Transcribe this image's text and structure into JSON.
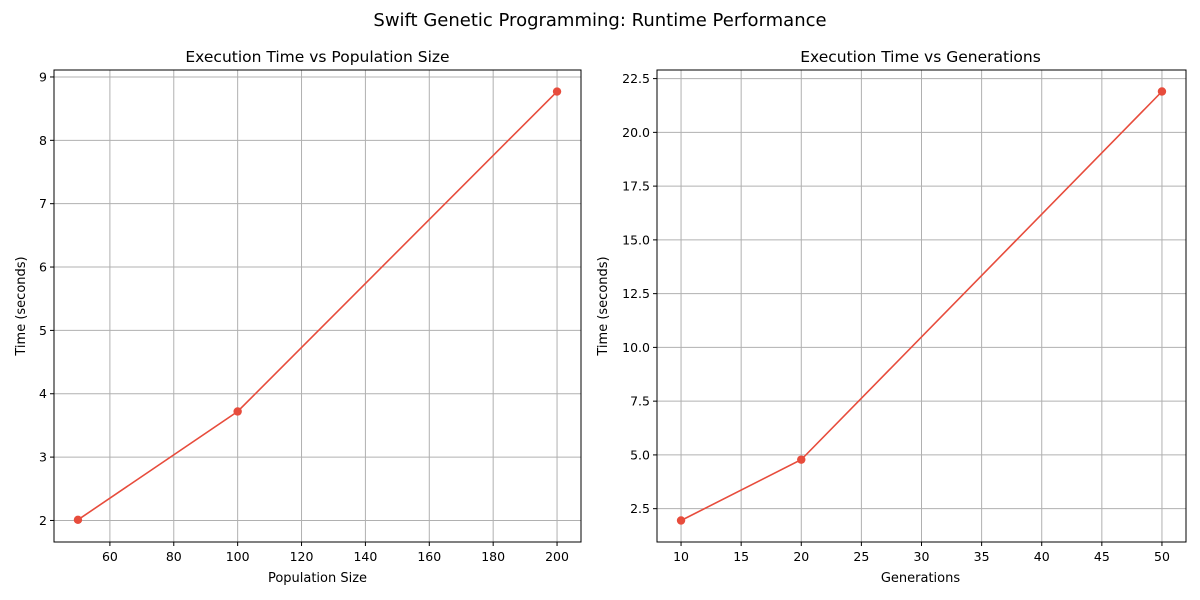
{
  "figure": {
    "suptitle": "Swift Genetic Programming: Runtime Performance"
  },
  "colors": {
    "series": "#e74c3c",
    "grid": "#b0b0b0",
    "spine": "#000000"
  },
  "chart_data": [
    {
      "type": "line",
      "title": "Execution Time vs Population Size",
      "xlabel": "Population Size",
      "ylabel": "Time (seconds)",
      "xlim": [
        42.5,
        207.5
      ],
      "ylim": [
        1.66,
        9.11
      ],
      "xticks": [
        60,
        80,
        100,
        120,
        140,
        160,
        180,
        200
      ],
      "yticks": [
        2,
        3,
        4,
        5,
        6,
        7,
        8,
        9
      ],
      "grid": true,
      "marker": "circle",
      "series": [
        {
          "x": [
            50,
            100,
            200
          ],
          "y": [
            2.01,
            3.72,
            8.77
          ]
        }
      ]
    },
    {
      "type": "line",
      "title": "Execution Time vs Generations",
      "xlabel": "Generations",
      "ylabel": "Time (seconds)",
      "xlim": [
        8.0,
        52.0
      ],
      "ylim": [
        0.95,
        22.9
      ],
      "xticks": [
        10,
        15,
        20,
        25,
        30,
        35,
        40,
        45,
        50
      ],
      "yticks": [
        2.5,
        5.0,
        7.5,
        10.0,
        12.5,
        15.0,
        17.5,
        20.0,
        22.5
      ],
      "ytick_format": "1dp",
      "grid": true,
      "marker": "circle",
      "series": [
        {
          "x": [
            10,
            20,
            50
          ],
          "y": [
            1.95,
            4.78,
            21.9
          ]
        }
      ]
    }
  ]
}
